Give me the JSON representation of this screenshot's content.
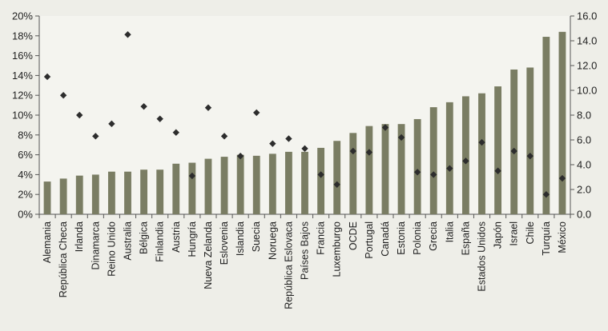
{
  "chart_data": {
    "type": "bar",
    "title": "",
    "xlabel": "",
    "ylabel": "",
    "categories": [
      "Alemania",
      "República Checa",
      "Irlanda",
      "Dinamarca",
      "Reino Unido",
      "Australia",
      "Bélgica",
      "Finlandia",
      "Austria",
      "Hungría",
      "Nueva Zelanda",
      "Eslovenia",
      "Islandia",
      "Suecia",
      "Noruega",
      "República Eslovaca",
      "Países Bajos",
      "Francia",
      "Luxemburgo",
      "OCDE",
      "Portugal",
      "Canadá",
      "Estonia",
      "Polonia",
      "Grecia",
      "Italia",
      "España",
      "Estados Unidos",
      "Japón",
      "Israel",
      "Chile",
      "Turquía",
      "México"
    ],
    "series": [
      {
        "axis": "left",
        "mark": "bar",
        "color": "#7a7d63",
        "values": [
          3.3,
          3.6,
          3.9,
          4.0,
          4.3,
          4.3,
          4.5,
          4.5,
          5.1,
          5.2,
          5.6,
          5.8,
          6.0,
          5.9,
          6.1,
          6.3,
          6.3,
          6.7,
          7.4,
          8.2,
          8.9,
          9.1,
          9.1,
          9.6,
          10.8,
          11.3,
          11.9,
          12.2,
          12.9,
          14.6,
          14.8,
          17.9,
          18.4
        ]
      },
      {
        "axis": "right",
        "mark": "diamond",
        "color": "#2d2d2d",
        "values": [
          11.1,
          9.6,
          8.0,
          6.3,
          7.3,
          14.5,
          8.7,
          7.7,
          6.6,
          3.1,
          8.6,
          6.3,
          4.7,
          8.2,
          5.7,
          6.1,
          5.3,
          3.2,
          2.4,
          5.1,
          5.0,
          7.0,
          6.2,
          3.4,
          3.2,
          3.7,
          4.3,
          5.8,
          3.5,
          5.1,
          4.7,
          1.6,
          2.9
        ]
      }
    ],
    "y_left": {
      "ylim": [
        0,
        20
      ],
      "ticks": [
        "0%",
        "2%",
        "4%",
        "6%",
        "8%",
        "10%",
        "12%",
        "14%",
        "16%",
        "18%",
        "20%"
      ]
    },
    "y_right": {
      "ylim": [
        0,
        16
      ],
      "ticks": [
        "0.0",
        "2.0",
        "4.0",
        "6.0",
        "8.0",
        "10.0",
        "12.0",
        "14.0",
        "16.0"
      ]
    },
    "grid": false,
    "legend": "none"
  }
}
